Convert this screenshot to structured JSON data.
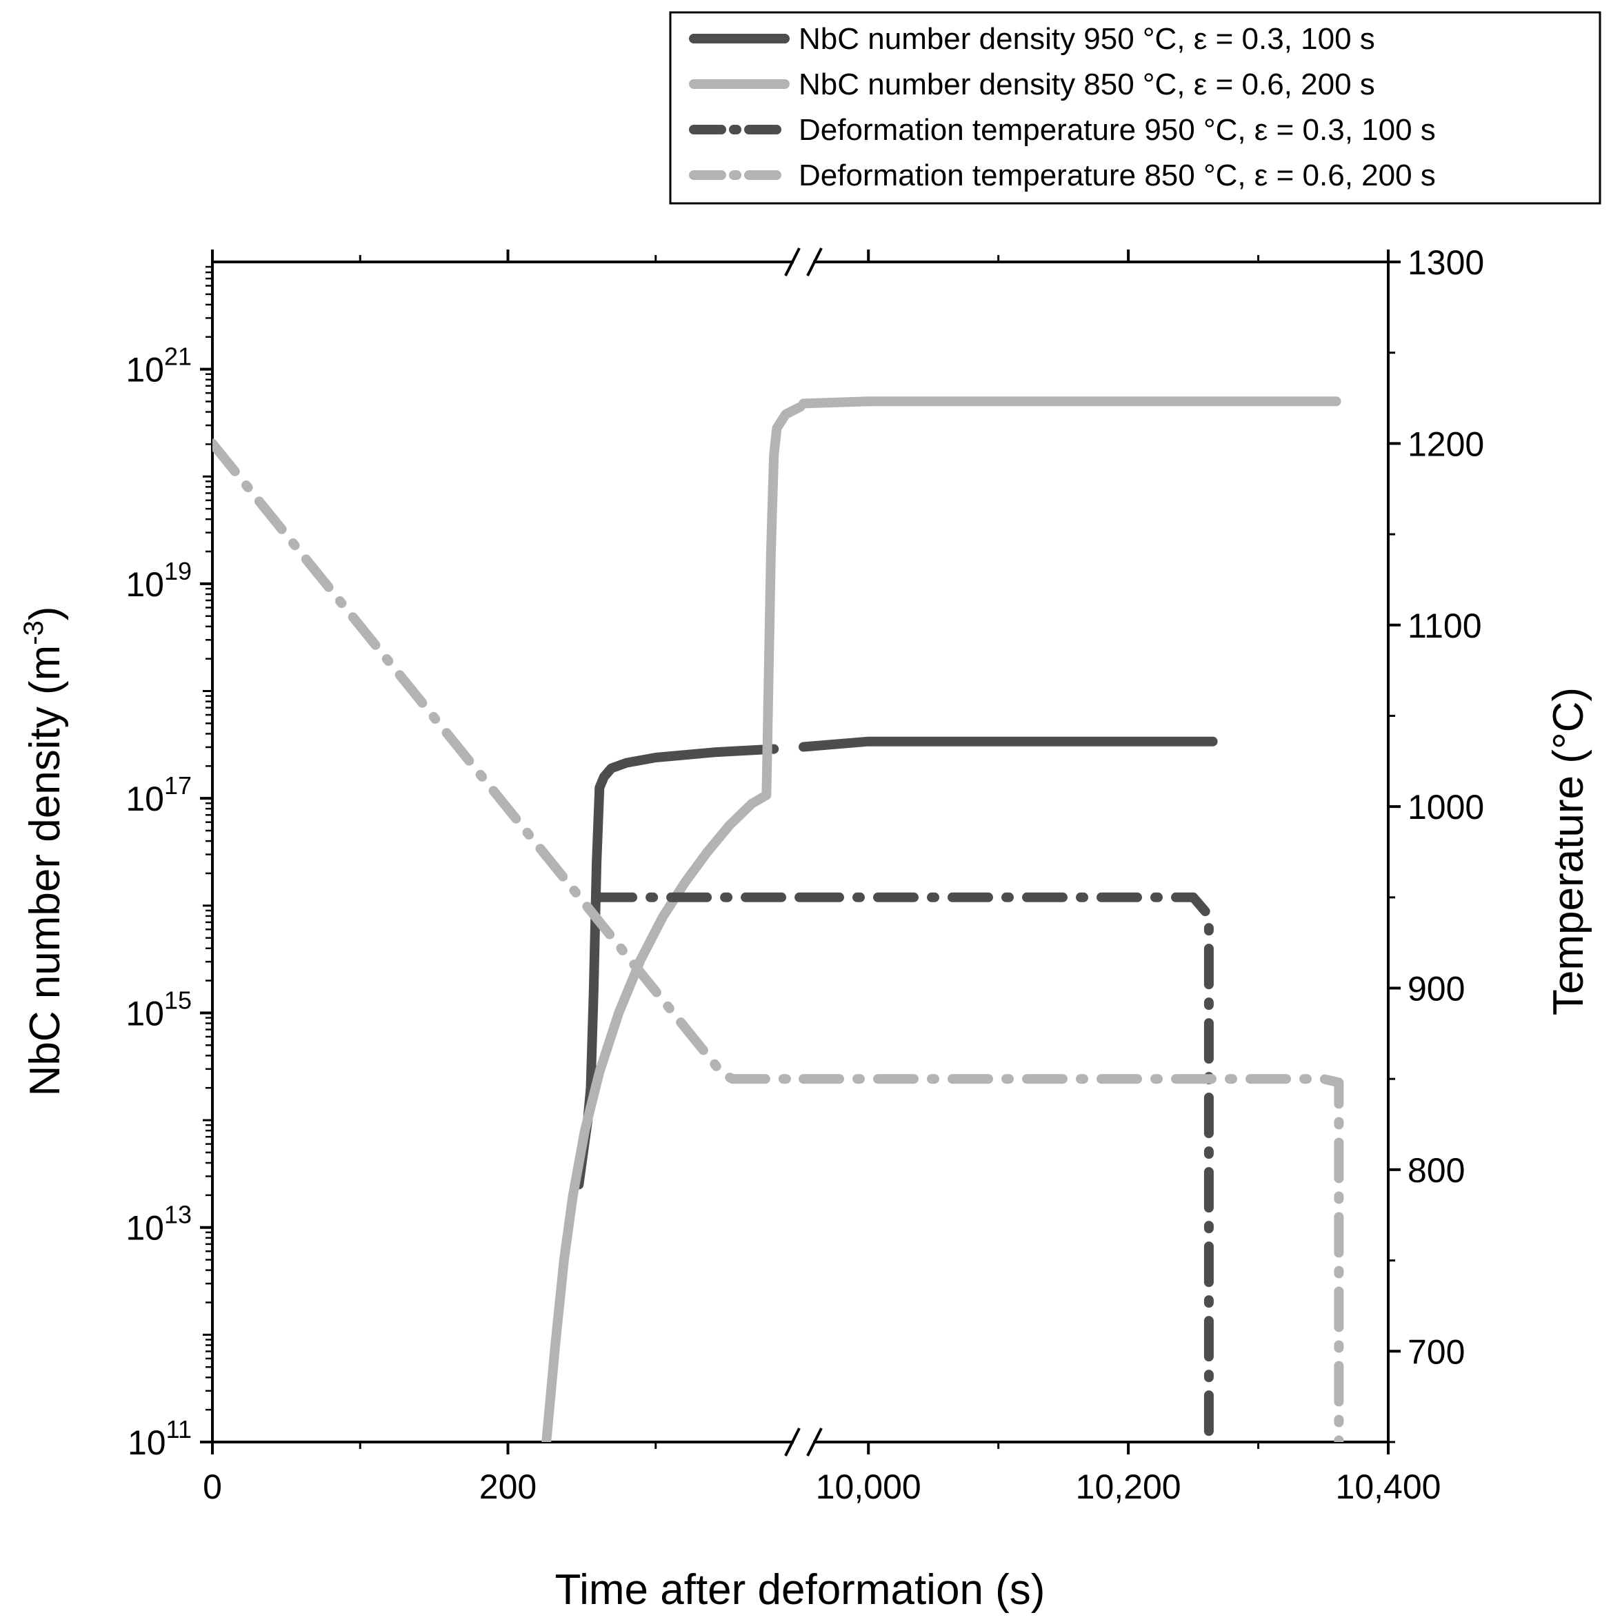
{
  "chart_data": {
    "type": "line",
    "xlabel": "Time after deformation (s)",
    "ylabel_left": "NbC number density (m",
    "ylabel_left_superscript": "-3",
    "ylabel_left_suffix": ")",
    "ylabel_right": "Temperature (°C)",
    "x_axis": {
      "broken": true,
      "segments": [
        {
          "range": [
            0,
            400
          ],
          "ticks": [
            0,
            200
          ],
          "tick_labels": [
            "0",
            "200"
          ]
        },
        {
          "range": [
            9950,
            10400
          ],
          "ticks": [
            10000,
            10200,
            10400
          ],
          "tick_labels": [
            "10,000",
            "10,200",
            "10,400"
          ]
        }
      ]
    },
    "y_left": {
      "scale": "log",
      "range_exp": [
        11,
        22
      ],
      "ticks_exp": [
        11,
        13,
        15,
        17,
        19,
        21
      ],
      "tick_labels": [
        {
          "base": "10",
          "exp": "11"
        },
        {
          "base": "10",
          "exp": "13"
        },
        {
          "base": "10",
          "exp": "15"
        },
        {
          "base": "10",
          "exp": "17"
        },
        {
          "base": "10",
          "exp": "19"
        },
        {
          "base": "10",
          "exp": "21"
        }
      ]
    },
    "y_right": {
      "scale": "linear",
      "range": [
        650,
        1300
      ],
      "ticks": [
        700,
        800,
        900,
        1000,
        1100,
        1200,
        1300
      ],
      "tick_labels": [
        "700",
        "800",
        "900",
        "1000",
        "1100",
        "1200",
        "1300"
      ]
    },
    "legend_position": "top-right",
    "series": [
      {
        "name": "NbC number density 950 °C, ε = 0.3, 100 s",
        "axis": "left",
        "style": "solid",
        "color": "#4d4d4d",
        "points": [
          [
            248,
            13.4
          ],
          [
            250,
            13.6
          ],
          [
            254,
            14.0
          ],
          [
            256,
            14.3
          ],
          [
            258,
            15.2
          ],
          [
            260,
            16.4
          ],
          [
            262,
            17.1
          ],
          [
            265,
            17.2
          ],
          [
            270,
            17.28
          ],
          [
            280,
            17.33
          ],
          [
            300,
            17.38
          ],
          [
            340,
            17.43
          ],
          [
            380,
            17.46
          ],
          [
            9950,
            17.48
          ],
          [
            10000,
            17.53
          ],
          [
            10265,
            17.53
          ]
        ]
      },
      {
        "name": "NbC number density 850 °C, ε = 0.6, 200 s",
        "axis": "left",
        "style": "solid",
        "color": "#b3b3b3",
        "points": [
          [
            226,
            11.0
          ],
          [
            232,
            11.9
          ],
          [
            238,
            12.7
          ],
          [
            244,
            13.3
          ],
          [
            252,
            13.9
          ],
          [
            262,
            14.45
          ],
          [
            275,
            15.0
          ],
          [
            290,
            15.5
          ],
          [
            305,
            15.9
          ],
          [
            320,
            16.22
          ],
          [
            335,
            16.5
          ],
          [
            350,
            16.75
          ],
          [
            365,
            16.95
          ],
          [
            375,
            17.03
          ],
          [
            378,
            19.3
          ],
          [
            380,
            20.2
          ],
          [
            382,
            20.45
          ],
          [
            388,
            20.58
          ],
          [
            398,
            20.65
          ],
          [
            9950,
            20.68
          ],
          [
            10000,
            20.7
          ],
          [
            10360,
            20.7
          ]
        ]
      },
      {
        "name": "Deformation temperature 950 °C, ε = 0.3, 100 s",
        "axis": "right",
        "style": "dashdot",
        "color": "#4d4d4d",
        "points": [
          [
            260,
            950
          ],
          [
            400,
            950
          ],
          [
            9950,
            950
          ],
          [
            10250,
            950
          ],
          [
            10262,
            940
          ],
          [
            10262,
            650
          ]
        ]
      },
      {
        "name": "Deformation temperature 850 °C, ε = 0.6, 200 s",
        "axis": "right",
        "style": "dashdot",
        "color": "#b3b3b3",
        "points": [
          [
            0,
            1200
          ],
          [
            345,
            853
          ],
          [
            352,
            850
          ],
          [
            400,
            850
          ],
          [
            9950,
            850
          ],
          [
            10350,
            850
          ],
          [
            10362,
            848
          ],
          [
            10362,
            650
          ]
        ]
      }
    ]
  }
}
